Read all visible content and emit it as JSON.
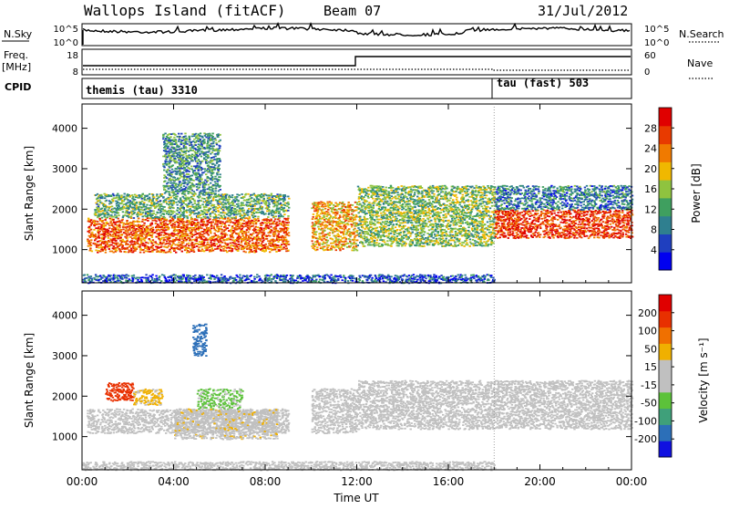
{
  "header": {
    "site": "Wallops Island (fitACF)",
    "beam": "Beam 07",
    "date": "31/Jul/2012"
  },
  "info_panels": {
    "nsky_label": "N.Sky",
    "nsky_ticks": [
      "10^5",
      "10^0"
    ],
    "nsearch_ticks": [
      "10^5",
      "10^0"
    ],
    "nsearch_label": "N.Search",
    "freq_label": "Freq.",
    "freq_unit": "[MHz]",
    "freq_ticks": [
      "18",
      "8"
    ],
    "nave_ticks": [
      "60",
      "0"
    ],
    "nave_label": "Nave",
    "cpid_label": "CPID",
    "cpid_modes": [
      {
        "name": "themis (tau) 3310",
        "start_hour": 0
      },
      {
        "name": "tau (fast) 503",
        "start_hour": 18
      }
    ]
  },
  "chart_data": [
    {
      "type": "heatmap",
      "name": "power",
      "xlabel": "Time UT",
      "ylabel": "Slant Range [km]",
      "x_ticks": [
        "00:00",
        "04:00",
        "08:00",
        "12:00",
        "16:00",
        "20:00",
        "00:00"
      ],
      "xlim_hours": [
        0,
        24
      ],
      "y_ticks": [
        1000,
        2000,
        3000,
        4000
      ],
      "ylim": [
        180,
        4600
      ],
      "colorbar": {
        "label": "Power [dB]",
        "ticks": [
          "28",
          "24",
          "20",
          "16",
          "12",
          "8",
          "4"
        ],
        "range": [
          0,
          30
        ],
        "colors": [
          "#0000f0",
          "#1f3fbf",
          "#2f7f8f",
          "#3f9f5f",
          "#8fc33f",
          "#f0b800",
          "#f07a00",
          "#e83a00",
          "#e00000"
        ]
      },
      "echo_regions": [
        {
          "t0": 0.2,
          "t1": 9.0,
          "r0": 950,
          "r1": 1800,
          "power": 24
        },
        {
          "t0": 0.5,
          "t1": 9.0,
          "r0": 1800,
          "r1": 2400,
          "power": 12
        },
        {
          "t0": 3.5,
          "t1": 6.0,
          "r0": 2400,
          "r1": 3900,
          "power": 10
        },
        {
          "t0": 10.0,
          "t1": 12.0,
          "r0": 1000,
          "r1": 2200,
          "power": 20
        },
        {
          "t0": 12.0,
          "t1": 18.0,
          "r0": 1100,
          "r1": 2600,
          "power": 14
        },
        {
          "t0": 18.0,
          "t1": 24.0,
          "r0": 1300,
          "r1": 2000,
          "power": 26
        },
        {
          "t0": 18.0,
          "t1": 24.0,
          "r0": 2000,
          "r1": 2600,
          "power": 8
        },
        {
          "t0": 0.0,
          "t1": 18.0,
          "r0": 190,
          "r1": 400,
          "power": 6
        }
      ]
    },
    {
      "type": "heatmap",
      "name": "velocity",
      "xlabel": "Time UT",
      "ylabel": "Slant Range [km]",
      "x_ticks": [
        "00:00",
        "04:00",
        "08:00",
        "12:00",
        "16:00",
        "20:00",
        "00:00"
      ],
      "xlim_hours": [
        0,
        24
      ],
      "y_ticks": [
        1000,
        2000,
        3000,
        4000
      ],
      "ylim": [
        180,
        4600
      ],
      "colorbar": {
        "label": "Velocity [m s⁻¹]",
        "ticks": [
          "200",
          "100",
          "50",
          "15",
          "-15",
          "-50",
          "-100",
          "-200"
        ],
        "range": [
          -250,
          250
        ],
        "colors": [
          "#1010e0",
          "#2c6fb8",
          "#3fa07a",
          "#5cc23a",
          "#c0c0c0",
          "#c0c0c0",
          "#f0b000",
          "#f07000",
          "#e83000",
          "#e00000"
        ]
      },
      "echo_regions": [
        {
          "t0": 0.2,
          "t1": 9.0,
          "r0": 1100,
          "r1": 1700,
          "velocity": 0
        },
        {
          "t0": 1.0,
          "t1": 2.2,
          "r0": 1900,
          "r1": 2350,
          "velocity": 180
        },
        {
          "t0": 2.2,
          "t1": 3.5,
          "r0": 1800,
          "r1": 2200,
          "velocity": 60
        },
        {
          "t0": 5.0,
          "t1": 7.0,
          "r0": 1700,
          "r1": 2200,
          "velocity": -60
        },
        {
          "t0": 4.0,
          "t1": 8.5,
          "r0": 950,
          "r1": 1700,
          "velocity": 35
        },
        {
          "t0": 4.8,
          "t1": 5.4,
          "r0": 3000,
          "r1": 3800,
          "velocity": -180
        },
        {
          "t0": 10.0,
          "t1": 12.0,
          "r0": 1100,
          "r1": 2200,
          "velocity": 20
        },
        {
          "t0": 12.0,
          "t1": 24.0,
          "r0": 1200,
          "r1": 2400,
          "velocity": 0
        },
        {
          "t0": 0.0,
          "t1": 18.0,
          "r0": 190,
          "r1": 400,
          "velocity": -30
        }
      ]
    }
  ]
}
